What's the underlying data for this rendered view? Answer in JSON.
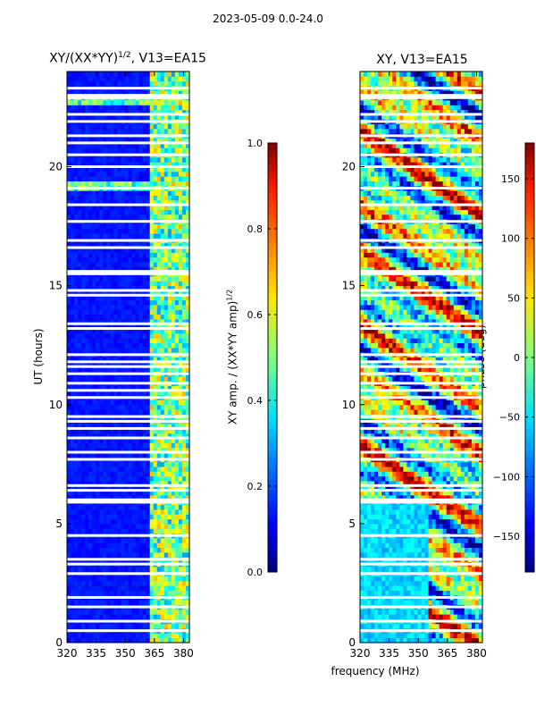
{
  "figure_title": "2023-05-09 0.0-24.0",
  "chart_data": [
    {
      "type": "heatmap",
      "title": "XY/(XX*YY)^{1/2}, V13=EA15",
      "title_main": "XY/(XX*YY)",
      "title_exp": "1/2",
      "title_tail": ", V13=EA15",
      "xlabel": "",
      "ylabel": "UT (hours)",
      "xlim": [
        320,
        383
      ],
      "ylim": [
        0,
        24
      ],
      "xticks": [
        320,
        335,
        350,
        365,
        380
      ],
      "yticks": [
        0,
        5,
        10,
        15,
        20
      ],
      "colorbar": {
        "label_main": "XY amp. / (XX*YY amp)",
        "label_exp": "1/2",
        "range": [
          0.0,
          1.0
        ],
        "ticks": [
          "0.0",
          "0.2",
          "0.4",
          "0.6",
          "0.8",
          "1.0"
        ]
      },
      "bright_band_mhz": [
        362,
        383
      ],
      "flag_gaps_hours": [
        0.5,
        0.9,
        1.5,
        1.9,
        2.9,
        3.3,
        3.5,
        4.5,
        5.9,
        6.0,
        6.4,
        6.6,
        7.7,
        8.0,
        8.6,
        9.0,
        9.3,
        9.5,
        10.3,
        10.6,
        10.9,
        11.3,
        11.6,
        11.8,
        12.1,
        13.2,
        13.4,
        14.6,
        14.8,
        15.5,
        15.6,
        16.6,
        16.9,
        17.7,
        18.4,
        19.1,
        20.0,
        20.5,
        21.0,
        21.3,
        21.9,
        22.2,
        22.9,
        23.0,
        23.3
      ]
    },
    {
      "type": "heatmap",
      "title": "XY, V13=EA15",
      "xlabel": "frequency (MHz)",
      "ylabel": "",
      "xlim": [
        320,
        383
      ],
      "ylim": [
        0,
        24
      ],
      "xticks": [
        320,
        335,
        350,
        365,
        380
      ],
      "yticks": [
        0,
        5,
        10,
        15,
        20
      ],
      "colorbar": {
        "label": "phase (deg)",
        "range": [
          -180,
          180
        ],
        "ticks": [
          "150",
          "100",
          "50",
          "0",
          "−50",
          "−100",
          "−150"
        ]
      },
      "flag_gaps_hours": [
        0.5,
        0.9,
        1.5,
        1.9,
        2.9,
        3.3,
        3.5,
        4.5,
        5.9,
        6.0,
        6.4,
        6.6,
        7.7,
        8.0,
        8.6,
        9.0,
        9.3,
        9.5,
        10.3,
        10.6,
        10.9,
        11.3,
        11.6,
        11.8,
        12.1,
        13.2,
        13.4,
        14.6,
        14.8,
        15.5,
        15.6,
        16.6,
        16.9,
        17.7,
        18.4,
        19.1,
        20.0,
        20.5,
        21.0,
        21.3,
        21.9,
        22.2,
        22.9,
        23.0,
        23.3
      ]
    }
  ]
}
